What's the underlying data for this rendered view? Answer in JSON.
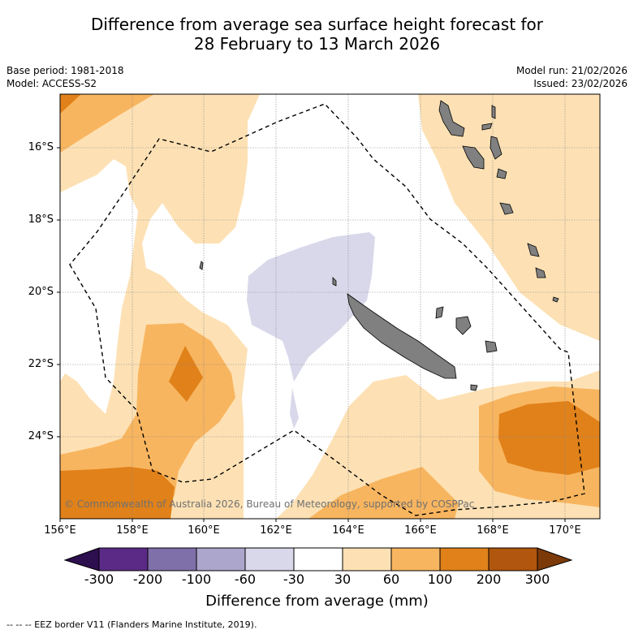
{
  "title": {
    "line1": "Difference from average sea surface height forecast for",
    "line2": "28 February to 13 March 2026"
  },
  "meta": {
    "base_period": "Base period: 1981-2018",
    "model": "Model: ACCESS-S2",
    "model_run": "Model run: 21/02/2026",
    "issued": "Issued: 23/02/2026"
  },
  "map": {
    "latitude_labels": [
      "16°S",
      "18°S",
      "20°S",
      "22°S",
      "24°S"
    ],
    "longitude_labels": [
      "156°E",
      "158°E",
      "160°E",
      "162°E",
      "164°E",
      "166°E",
      "168°E",
      "170°E"
    ],
    "copyright": "© Commonwealth of Australia 2026, Bureau of Meteorology, supported by COSPPac",
    "land_color": "#808080",
    "eez_line_color": "#000000"
  },
  "colorbar": {
    "bins": [
      {
        "color": "#2d0e4e"
      },
      {
        "color": "#5b2a86"
      },
      {
        "color": "#8070aa"
      },
      {
        "color": "#aca6cc"
      },
      {
        "color": "#d8d8ea"
      },
      {
        "color": "#ffffff"
      },
      {
        "color": "#fde1b4"
      },
      {
        "color": "#f8b55f"
      },
      {
        "color": "#e0811a"
      },
      {
        "color": "#b0560e"
      },
      {
        "color": "#7b3a08"
      }
    ],
    "tick_labels": [
      "-300",
      "-200",
      "-100",
      "-60",
      "-30",
      "30",
      "60",
      "100",
      "200",
      "300"
    ],
    "title": "Difference from average (mm)"
  },
  "footnote": "--  --  -- EEZ border V11 (Flanders Marine Institute, 2019)."
}
